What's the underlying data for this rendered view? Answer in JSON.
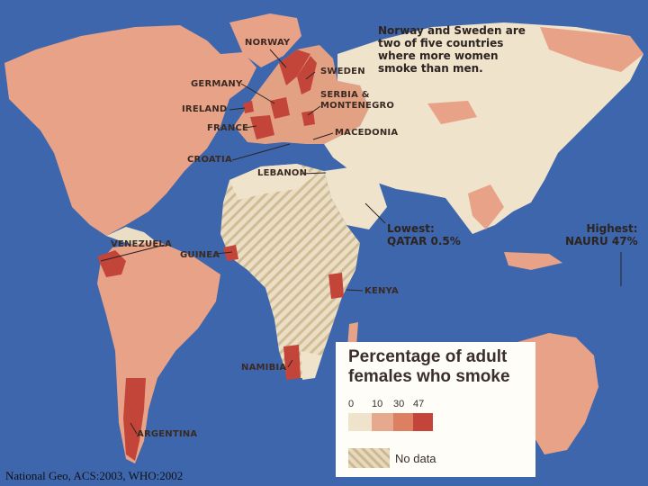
{
  "map": {
    "note": "Norway and Sweden are two of five countries where more women smoke than men.",
    "lowest_label": "Lowest:",
    "lowest_value": "QATAR 0.5%",
    "highest_label": "Highest:",
    "highest_value": "NAURU 47%",
    "countries": {
      "norway": "NORWAY",
      "sweden": "SWEDEN",
      "germany": "GERMANY",
      "ireland": "IRELAND",
      "france": "FRANCE",
      "serbia": "SERBIA & MONTENEGRO",
      "macedonia": "MACEDONIA",
      "croatia": "CROATIA",
      "lebanon": "LEBANON",
      "venezuela": "VENEZUELA",
      "guinea": "GUINEA",
      "kenya": "KENYA",
      "namibia": "NAMIBIA",
      "argentina": "ARGENTINA"
    },
    "colors": {
      "ocean": "#3d66ad",
      "low": "#efe3cc",
      "mid": "#e6a98e",
      "high": "#dd8062",
      "top": "#c3453a"
    }
  },
  "legend": {
    "title": "Percentage of adult females who smoke",
    "ticks": [
      "0",
      "10",
      "30",
      "47"
    ],
    "no_data": "No data"
  },
  "credit": "National Geo, ACS:2003, WHO:2002"
}
